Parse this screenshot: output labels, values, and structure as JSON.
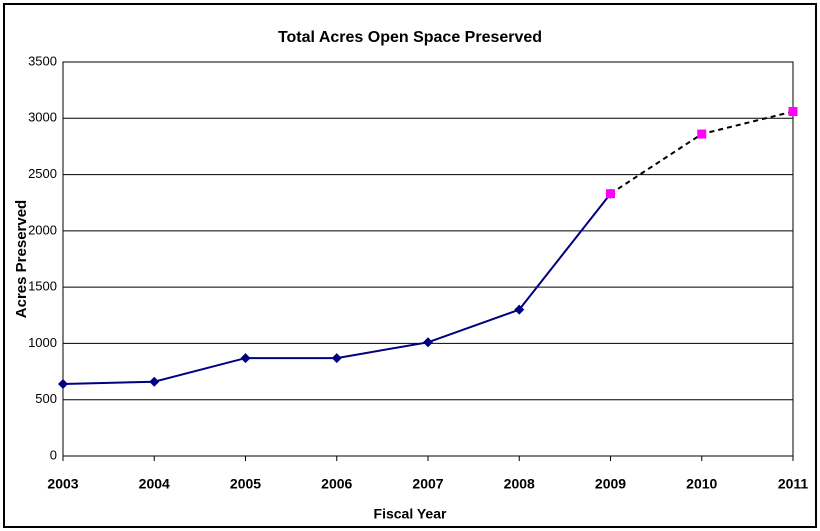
{
  "chart_data": {
    "type": "line",
    "title": "Total Acres Open Space Preserved",
    "x_label": "Fiscal Year",
    "y_label": "Acres Preserved",
    "categories": [
      "2003",
      "2004",
      "2005",
      "2006",
      "2007",
      "2008",
      "2009",
      "2010",
      "2011"
    ],
    "series": [
      {
        "color": "#000080",
        "marker_color": "#000080",
        "marker": "diamond",
        "dashed": false,
        "values": [
          640,
          660,
          870,
          870,
          1010,
          1300,
          2330,
          null,
          null
        ]
      },
      {
        "color": "#000000",
        "marker_color": "#ff00ff",
        "marker": "square",
        "dashed": true,
        "values": [
          null,
          null,
          null,
          null,
          null,
          null,
          2330,
          2860,
          3060
        ]
      }
    ],
    "ylim": [
      0,
      3500
    ],
    "yticks": [
      0,
      500,
      1000,
      1500,
      2000,
      2500,
      3000,
      3500
    ],
    "grid": true
  }
}
